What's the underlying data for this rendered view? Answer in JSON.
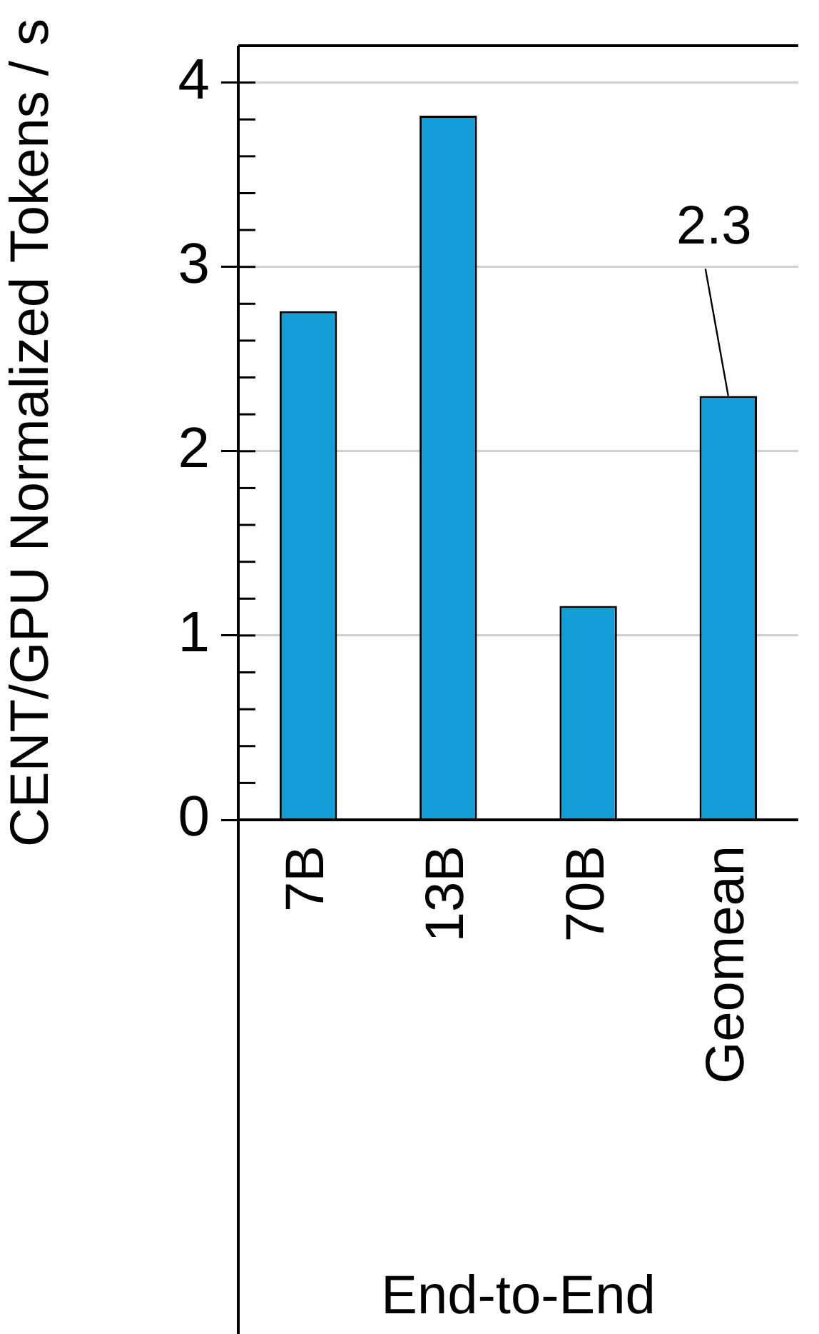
{
  "chart_data": {
    "type": "bar",
    "ylabel": "CENT/GPU Normalized Tokens / s",
    "xlabel": "End-to-End",
    "categories": [
      "7B",
      "13B",
      "70B",
      "Geomean"
    ],
    "values": [
      2.76,
      3.82,
      1.16,
      2.3
    ],
    "value_labels": [
      null,
      null,
      null,
      "2.3"
    ],
    "color": "#139dd6",
    "ylim": [
      0,
      4.2
    ],
    "yticks": [
      0,
      {
        "value": 0.2,
        "label": null
      },
      {
        "value": 0.4,
        "label": null
      },
      {
        "value": 0.6,
        "label": null
      },
      {
        "value": 0.8,
        "label": null
      },
      1,
      {
        "value": 1.2,
        "label": null
      },
      {
        "value": 1.4,
        "label": null
      },
      {
        "value": 1.6,
        "label": null
      },
      {
        "value": 1.8,
        "label": null
      },
      2,
      {
        "value": 2.2,
        "label": null
      },
      {
        "value": 2.4,
        "label": null
      },
      {
        "value": 2.6,
        "label": null
      },
      {
        "value": 2.8,
        "label": null
      },
      3,
      {
        "value": 3.2,
        "label": null
      },
      {
        "value": 3.4,
        "label": null
      },
      {
        "value": 3.6,
        "label": null
      },
      {
        "value": 3.8,
        "label": null
      },
      4
    ],
    "grid": "y"
  }
}
